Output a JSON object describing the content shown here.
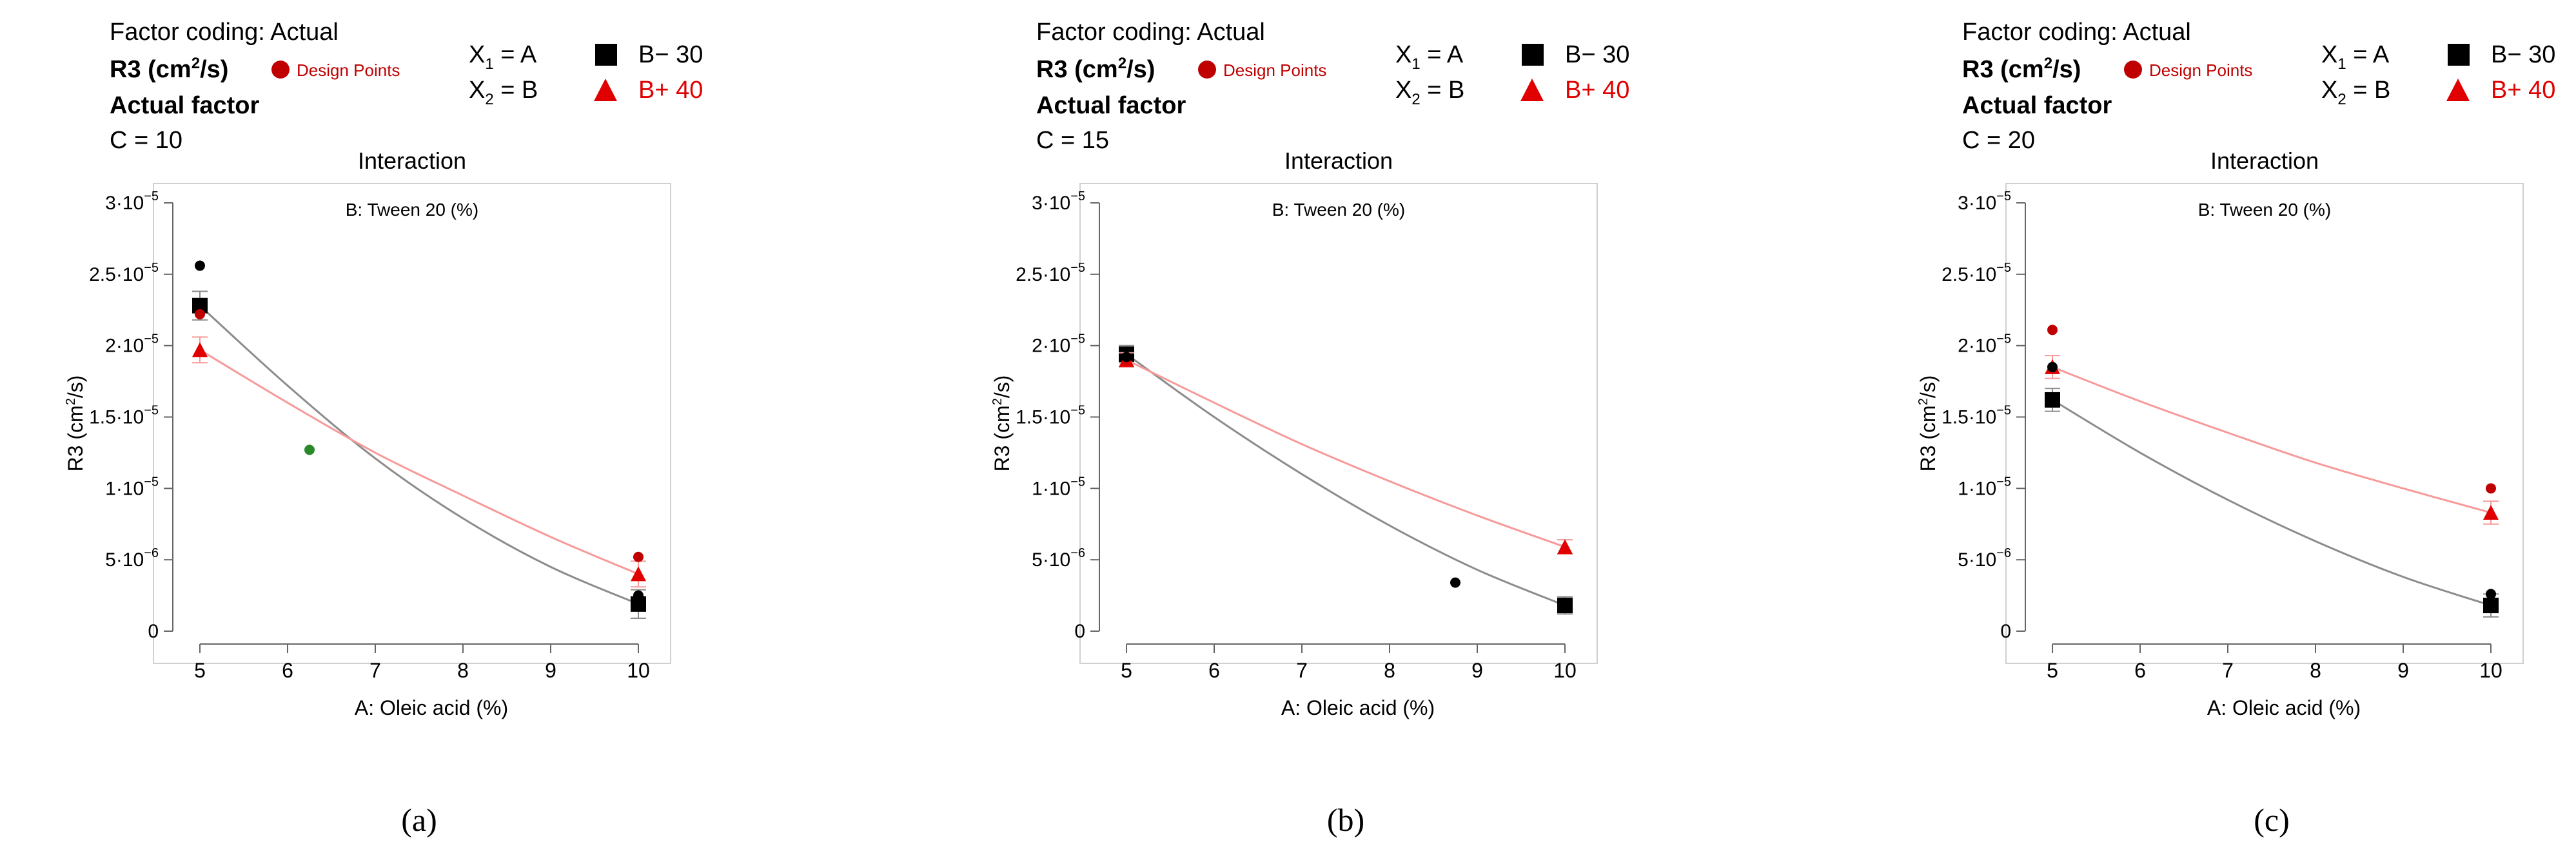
{
  "colors": {
    "series_low": "#000000",
    "series_low_line": "#8c8c8c",
    "series_high": "#e00000",
    "series_high_line": "#f79a9a",
    "design_point": "#c00000",
    "design_point_dark": "#000000",
    "design_point_green": "#2a8a2a",
    "axis": "#666666"
  },
  "chart_data": [
    {
      "id": "a",
      "type": "line",
      "panel_label": "(a)",
      "header": {
        "factor_coding": "Factor coding: Actual",
        "response": "R3 (cm",
        "response_sup": "2",
        "response_tail": "/s)",
        "design_points_label": "Design Points",
        "actual_factor": "Actual factor",
        "actual_factor_value": "C = 10",
        "x1_base": "X",
        "x1_sub": "1",
        "x1_rest": " = A",
        "x2_base": "X",
        "x2_sub": "2",
        "x2_rest": " = B",
        "legend_low": "B− 30",
        "legend_high": "B+ 40"
      },
      "title": "Interaction",
      "subtitle": "B: Tween 20 (%)",
      "xlabel": "A: Oleic acid (%)",
      "ylabel_base": "R3 (cm",
      "ylabel_sup": "2",
      "ylabel_tail": "/s)",
      "xlim": [
        5,
        10
      ],
      "ylim": [
        0,
        3e-05
      ],
      "xticks": [
        5,
        6,
        7,
        8,
        9,
        10
      ],
      "yticks": [
        0,
        5e-06,
        1e-05,
        1.5e-05,
        2e-05,
        2.5e-05,
        3e-05
      ],
      "ytick_labels": [
        "0",
        "5·10",
        "1·10",
        "1.5·10",
        "2·10",
        "2.5·10",
        "3·10"
      ],
      "ytick_exps": [
        "",
        "−6",
        "−5",
        "−5",
        "−5",
        "−5",
        "−5"
      ],
      "series": [
        {
          "name": "B− 30",
          "marker": "square",
          "x": [
            5,
            10
          ],
          "y": [
            2.28e-05,
            1.9e-06
          ],
          "err": 1e-06,
          "curve": [
            [
              5,
              2.28e-05
            ],
            [
              6,
              1.72e-05
            ],
            [
              7,
              1.21e-05
            ],
            [
              8,
              7.9e-06
            ],
            [
              9,
              4.5e-06
            ],
            [
              10,
              1.9e-06
            ]
          ]
        },
        {
          "name": "B+ 40",
          "marker": "triangle",
          "x": [
            5,
            10
          ],
          "y": [
            1.97e-05,
            4e-06
          ],
          "err": 9e-07,
          "curve": [
            [
              5,
              1.97e-05
            ],
            [
              6,
              1.6e-05
            ],
            [
              7,
              1.25e-05
            ],
            [
              8,
              9.5e-06
            ],
            [
              9,
              6.6e-06
            ],
            [
              10,
              4e-06
            ]
          ]
        }
      ],
      "design_points": [
        {
          "x": 5,
          "y": 2.56e-05,
          "color": "dark"
        },
        {
          "x": 5,
          "y": 2.22e-05,
          "color": "red"
        },
        {
          "x": 6.25,
          "y": 1.27e-05,
          "color": "green"
        },
        {
          "x": 10,
          "y": 5.2e-06,
          "color": "red"
        },
        {
          "x": 10,
          "y": 2.5e-06,
          "color": "dark"
        }
      ]
    },
    {
      "id": "b",
      "type": "line",
      "panel_label": "(b)",
      "header": {
        "factor_coding": "Factor coding: Actual",
        "response": "R3 (cm",
        "response_sup": "2",
        "response_tail": "/s)",
        "design_points_label": "Design Points",
        "actual_factor": "Actual factor",
        "actual_factor_value": "C = 15",
        "x1_base": "X",
        "x1_sub": "1",
        "x1_rest": " = A",
        "x2_base": "X",
        "x2_sub": "2",
        "x2_rest": " = B",
        "legend_low": "B− 30",
        "legend_high": "B+ 40"
      },
      "title": "Interaction",
      "subtitle": "B: Tween 20 (%)",
      "xlabel": "A: Oleic acid (%)",
      "ylabel_base": "R3 (cm",
      "ylabel_sup": "2",
      "ylabel_tail": "/s)",
      "xlim": [
        5,
        10
      ],
      "ylim": [
        0,
        3e-05
      ],
      "xticks": [
        5,
        6,
        7,
        8,
        9,
        10
      ],
      "yticks": [
        0,
        5e-06,
        1e-05,
        1.5e-05,
        2e-05,
        2.5e-05,
        3e-05
      ],
      "ytick_labels": [
        "0",
        "5·10",
        "1·10",
        "1.5·10",
        "2·10",
        "2.5·10",
        "3·10"
      ],
      "ytick_exps": [
        "",
        "−6",
        "−5",
        "−5",
        "−5",
        "−5",
        "−5"
      ],
      "series": [
        {
          "name": "B− 30",
          "marker": "square",
          "x": [
            5,
            10
          ],
          "y": [
            1.94e-05,
            1.8e-06
          ],
          "err": 6e-07,
          "curve": [
            [
              5,
              1.94e-05
            ],
            [
              6,
              1.5e-05
            ],
            [
              7,
              1.1e-05
            ],
            [
              8,
              7.4e-06
            ],
            [
              9,
              4.3e-06
            ],
            [
              10,
              1.8e-06
            ]
          ]
        },
        {
          "name": "B+ 40",
          "marker": "triangle",
          "x": [
            5,
            10
          ],
          "y": [
            1.9e-05,
            5.9e-06
          ],
          "err": 5e-07,
          "curve": [
            [
              5,
              1.9e-05
            ],
            [
              6,
              1.6e-05
            ],
            [
              7,
              1.31e-05
            ],
            [
              8,
              1.05e-05
            ],
            [
              9,
              8.1e-06
            ],
            [
              10,
              5.9e-06
            ]
          ]
        }
      ],
      "design_points": [
        {
          "x": 5,
          "y": 1.92e-05,
          "color": "dark"
        },
        {
          "x": 8.75,
          "y": 3.4e-06,
          "color": "dark"
        }
      ]
    },
    {
      "id": "c",
      "type": "line",
      "panel_label": "(c)",
      "header": {
        "factor_coding": "Factor coding: Actual",
        "response": "R3 (cm",
        "response_sup": "2",
        "response_tail": "/s)",
        "design_points_label": "Design Points",
        "actual_factor": "Actual factor",
        "actual_factor_value": "C = 20",
        "x1_base": "X",
        "x1_sub": "1",
        "x1_rest": " = A",
        "x2_base": "X",
        "x2_sub": "2",
        "x2_rest": " = B",
        "legend_low": "B− 30",
        "legend_high": "B+ 40"
      },
      "title": "Interaction",
      "subtitle": "B: Tween 20 (%)",
      "xlabel": "A: Oleic acid (%)",
      "ylabel_base": "R3 (cm",
      "ylabel_sup": "2",
      "ylabel_tail": "/s)",
      "xlim": [
        5,
        10
      ],
      "ylim": [
        0,
        3e-05
      ],
      "xticks": [
        5,
        6,
        7,
        8,
        9,
        10
      ],
      "yticks": [
        0,
        5e-06,
        1e-05,
        1.5e-05,
        2e-05,
        2.5e-05,
        3e-05
      ],
      "ytick_labels": [
        "0",
        "5·10",
        "1·10",
        "1.5·10",
        "2·10",
        "2.5·10",
        "3·10"
      ],
      "ytick_exps": [
        "",
        "−6",
        "−5",
        "−5",
        "−5",
        "−5",
        "−5"
      ],
      "series": [
        {
          "name": "B− 30",
          "marker": "square",
          "x": [
            5,
            10
          ],
          "y": [
            1.62e-05,
            1.8e-06
          ],
          "err": 8e-07,
          "curve": [
            [
              5,
              1.62e-05
            ],
            [
              6,
              1.25e-05
            ],
            [
              7,
              9.2e-06
            ],
            [
              8,
              6.3e-06
            ],
            [
              9,
              3.8e-06
            ],
            [
              10,
              1.8e-06
            ]
          ]
        },
        {
          "name": "B+ 40",
          "marker": "triangle",
          "x": [
            5,
            10
          ],
          "y": [
            1.85e-05,
            8.3e-06
          ],
          "err": 8e-07,
          "curve": [
            [
              5,
              1.85e-05
            ],
            [
              6,
              1.61e-05
            ],
            [
              7,
              1.39e-05
            ],
            [
              8,
              1.18e-05
            ],
            [
              9,
              1e-05
            ],
            [
              10,
              8.3e-06
            ]
          ]
        }
      ],
      "design_points": [
        {
          "x": 5,
          "y": 2.11e-05,
          "color": "red"
        },
        {
          "x": 5,
          "y": 1.85e-05,
          "color": "dark"
        },
        {
          "x": 10,
          "y": 1e-05,
          "color": "red"
        },
        {
          "x": 10,
          "y": 2.6e-06,
          "color": "dark"
        }
      ]
    }
  ]
}
